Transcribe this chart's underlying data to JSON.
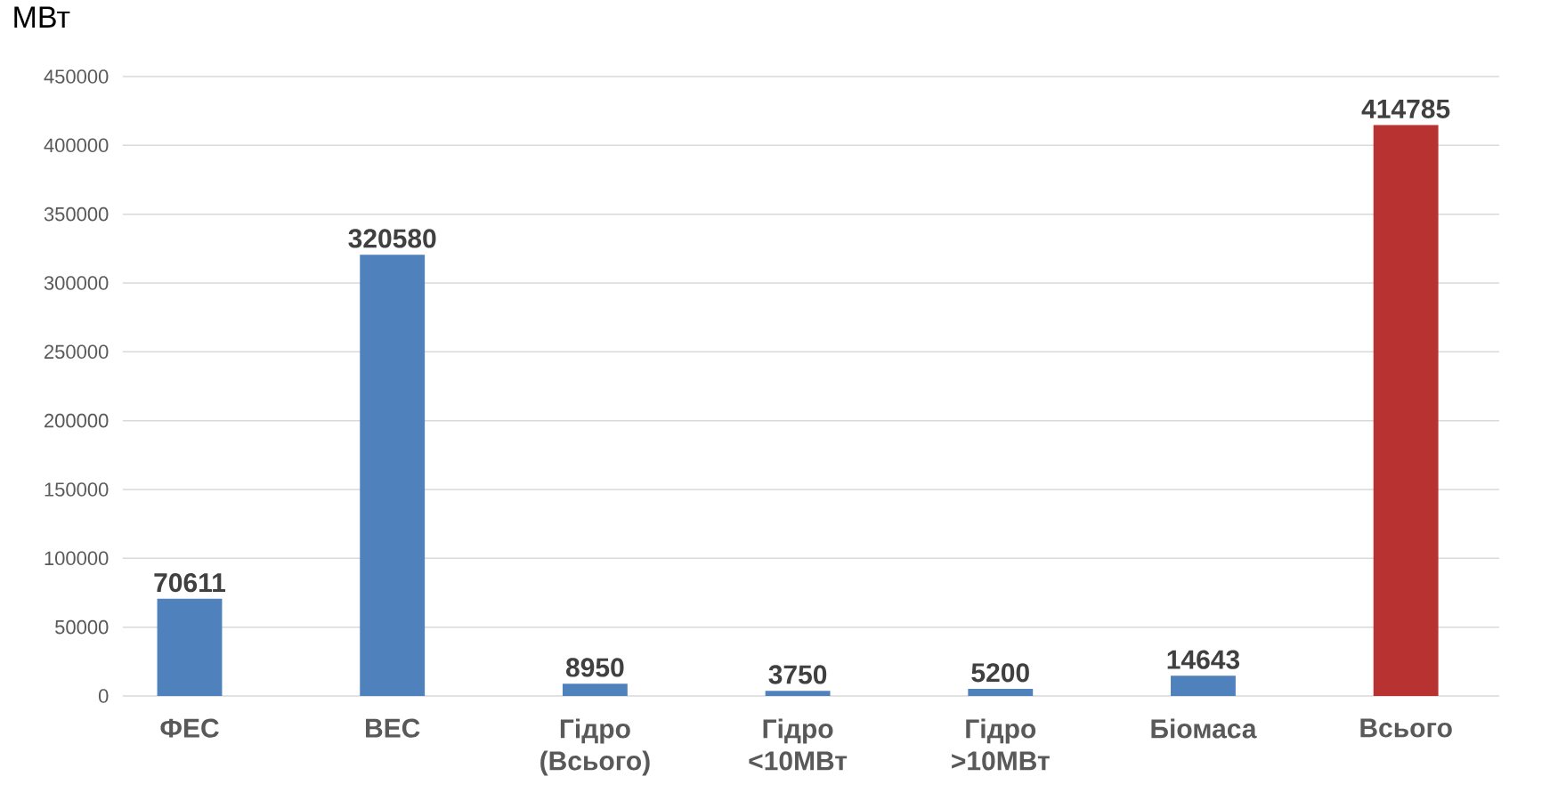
{
  "chart_data": {
    "type": "bar",
    "ylabel": "МВт",
    "categories": [
      "ФЕС",
      "ВЕС",
      "Гідро (Всього)",
      "Гідро <10МВт",
      "Гідро >10МВт",
      "Біомаса",
      "Всього"
    ],
    "values": [
      70611,
      320580,
      8950,
      3750,
      5200,
      14643,
      414785
    ],
    "colors": [
      "#4f81bd",
      "#4f81bd",
      "#4f81bd",
      "#4f81bd",
      "#4f81bd",
      "#4f81bd",
      "#b83232"
    ],
    "ylim": [
      0,
      450000
    ],
    "yticks": [
      0,
      50000,
      100000,
      150000,
      200000,
      250000,
      300000,
      350000,
      400000,
      450000
    ],
    "grid": "y",
    "data_labels": true
  }
}
